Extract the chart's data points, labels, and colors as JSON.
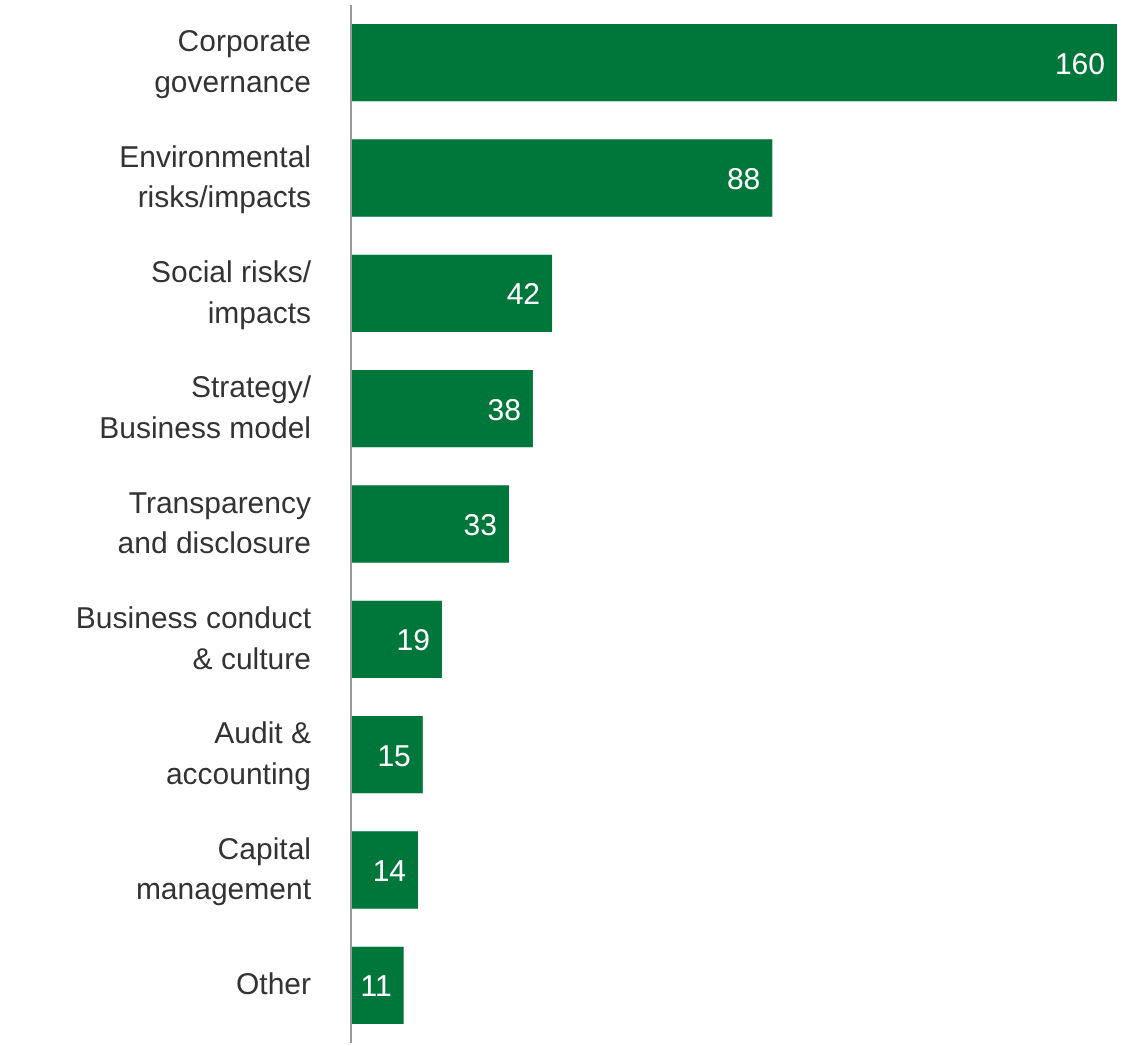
{
  "chart_data": {
    "type": "bar",
    "orientation": "horizontal",
    "categories": [
      "Corporate\ngovernance",
      "Environmental\nrisks/impacts",
      "Social risks/\nimpacts",
      "Strategy/\nBusiness model",
      "Transparency\nand disclosure",
      "Business conduct\n& culture",
      "Audit &\naccounting",
      "Capital\nmanagement",
      "Other"
    ],
    "values": [
      160,
      88,
      42,
      38,
      33,
      19,
      15,
      14,
      11
    ],
    "color": "#00773a",
    "data_labels": true
  }
}
